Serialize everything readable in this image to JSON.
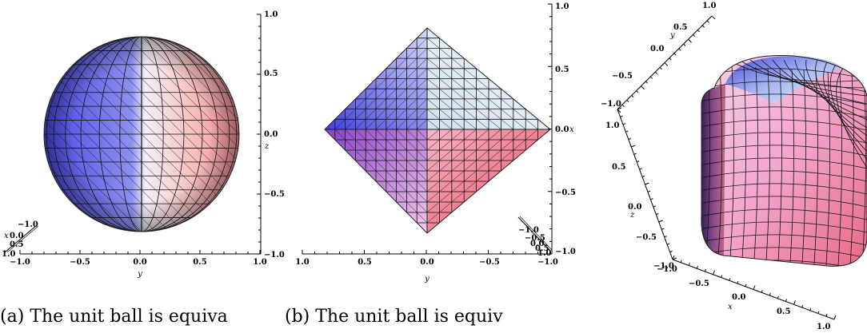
{
  "panels": [
    {
      "id": "a",
      "surface": "sphere",
      "caption": "(a) The unit ball is equiva",
      "y_ticks": [
        "−1.0",
        "−0.5",
        "0.0",
        "0.5",
        "1.0"
      ],
      "y_label": "y",
      "z_ticks": [
        "1.0",
        "0.5",
        "0.0",
        "−0.5",
        "−1.0"
      ],
      "z_label": "z",
      "x_ticks": [
        "−1.0",
        "0.0",
        "0.5",
        "1.0"
      ],
      "x_label": "x"
    },
    {
      "id": "b",
      "surface": "octahedron",
      "caption": "(b) The unit ball is equiv",
      "y_ticks": [
        "1.0",
        "0.5",
        "0.0",
        "−0.5",
        "−1.0"
      ],
      "y_label": "y",
      "x_ticks": [
        "1.0",
        "0.5",
        "0.0",
        "−0.5",
        "−1.0"
      ],
      "x_label": "x",
      "corner_ticks": [
        "−1.0",
        "−0.5",
        "0.0",
        "0.5",
        "1.0"
      ]
    },
    {
      "id": "c",
      "surface": "rounded-cylinder",
      "y_ticks": [
        "1.0",
        "0.5",
        "0.0",
        "−0.5",
        "−1.0"
      ],
      "y_label": "y",
      "z_ticks": [
        "1.0",
        "0.5",
        "0.0",
        "−0.5",
        "−1.0"
      ],
      "z_label": "z",
      "x_ticks": [
        "−1.0",
        "−0.5",
        "0.0",
        "0.5",
        "1.0"
      ],
      "x_label": "x"
    }
  ],
  "colors": {
    "blue": "#3a3ad8",
    "white": "#f4f4ff",
    "pink": "#f3a0b0",
    "red": "#e85a6a",
    "mesh": "#111111"
  }
}
